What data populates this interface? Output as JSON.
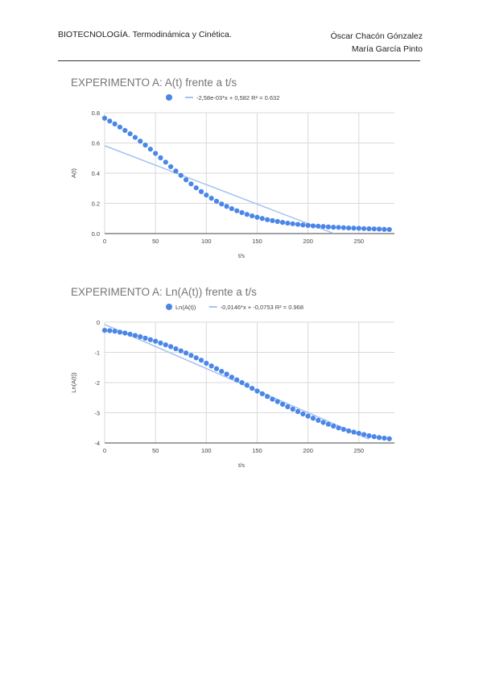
{
  "header": {
    "course": "BIOTECNOLOGÍA. Termodinámica y Cinética.",
    "author1": "Óscar Chacón Gónzalez",
    "author2": "María García Pinto"
  },
  "colors": {
    "series": "#4a86e8",
    "trend": "#a4c2f4",
    "grid": "#d9d9d9",
    "title": "#757575"
  },
  "chart_data": [
    {
      "type": "scatter",
      "title": "EXPERIMENTO A: A(t) frente a t/s",
      "xlabel": "t/s",
      "ylabel": "A(t)",
      "xlim": [
        0,
        285
      ],
      "ylim": [
        0,
        0.8
      ],
      "xticks": [
        "0",
        "50",
        "100",
        "150",
        "200",
        "250"
      ],
      "yticks": [
        "0.0",
        "0.2",
        "0.4",
        "0.6",
        "0.8"
      ],
      "legend": {
        "position": "top",
        "entries": [
          "",
          "-2,58e-03*x + 0,582 R² = 0.632"
        ]
      },
      "series": [
        {
          "x": [
            0,
            5,
            10,
            15,
            20,
            25,
            30,
            35,
            40,
            45,
            50,
            55,
            60,
            65,
            70,
            75,
            80,
            85,
            90,
            95,
            100,
            105,
            110,
            115,
            120,
            125,
            130,
            135,
            140,
            145,
            150,
            155,
            160,
            165,
            170,
            175,
            180,
            185,
            190,
            195,
            200,
            205,
            210,
            215,
            220,
            225,
            230,
            235,
            240,
            245,
            250,
            255,
            260,
            265,
            270,
            275,
            280
          ],
          "y": [
            0.764,
            0.745,
            0.726,
            0.705,
            0.683,
            0.661,
            0.637,
            0.612,
            0.586,
            0.559,
            0.531,
            0.502,
            0.473,
            0.443,
            0.414,
            0.385,
            0.356,
            0.329,
            0.303,
            0.278,
            0.255,
            0.234,
            0.214,
            0.196,
            0.18,
            0.165,
            0.151,
            0.139,
            0.127,
            0.117,
            0.108,
            0.1,
            0.092,
            0.086,
            0.08,
            0.074,
            0.069,
            0.065,
            0.061,
            0.057,
            0.054,
            0.051,
            0.049,
            0.047,
            0.044,
            0.042,
            0.041,
            0.039,
            0.037,
            0.036,
            0.035,
            0.033,
            0.032,
            0.031,
            0.03,
            0.028,
            0.027
          ]
        }
      ],
      "trendline": {
        "slope": -0.00258,
        "intercept": 0.582,
        "x_range": [
          0,
          225
        ]
      }
    },
    {
      "type": "scatter",
      "title": "EXPERIMENTO A: Ln(A(t)) frente a t/s",
      "xlabel": "t/s",
      "ylabel": "Ln(A(t))",
      "xlim": [
        0,
        285
      ],
      "ylim": [
        -4,
        0
      ],
      "xticks": [
        "0",
        "50",
        "100",
        "150",
        "200",
        "250"
      ],
      "yticks": [
        "0",
        "-1",
        "-2",
        "-3",
        "-4"
      ],
      "legend": {
        "position": "top",
        "entries": [
          "Ln(A(t))",
          "-0,0146*x + -0,0753 R² = 0.968"
        ]
      },
      "series": [
        {
          "name": "Ln(A(t))",
          "x": [
            0,
            5,
            10,
            15,
            20,
            25,
            30,
            35,
            40,
            45,
            50,
            55,
            60,
            65,
            70,
            75,
            80,
            85,
            90,
            95,
            100,
            105,
            110,
            115,
            120,
            125,
            130,
            135,
            140,
            145,
            150,
            155,
            160,
            165,
            170,
            175,
            180,
            185,
            190,
            195,
            200,
            205,
            210,
            215,
            220,
            225,
            230,
            235,
            240,
            245,
            250,
            255,
            260,
            265,
            270,
            275,
            280
          ],
          "y": [
            -0.27,
            -0.28,
            -0.3,
            -0.33,
            -0.36,
            -0.4,
            -0.44,
            -0.48,
            -0.53,
            -0.58,
            -0.63,
            -0.69,
            -0.75,
            -0.81,
            -0.88,
            -0.95,
            -1.02,
            -1.1,
            -1.18,
            -1.26,
            -1.36,
            -1.45,
            -1.54,
            -1.63,
            -1.72,
            -1.82,
            -1.91,
            -2.0,
            -2.09,
            -2.19,
            -2.28,
            -2.37,
            -2.46,
            -2.55,
            -2.63,
            -2.72,
            -2.8,
            -2.88,
            -2.96,
            -3.04,
            -3.11,
            -3.18,
            -3.25,
            -3.32,
            -3.38,
            -3.44,
            -3.5,
            -3.55,
            -3.6,
            -3.64,
            -3.68,
            -3.72,
            -3.76,
            -3.79,
            -3.82,
            -3.84,
            -3.86
          ]
        }
      ],
      "trendline": {
        "slope": -0.0146,
        "intercept": -0.0753,
        "x_range": [
          0,
          260
        ]
      }
    }
  ]
}
